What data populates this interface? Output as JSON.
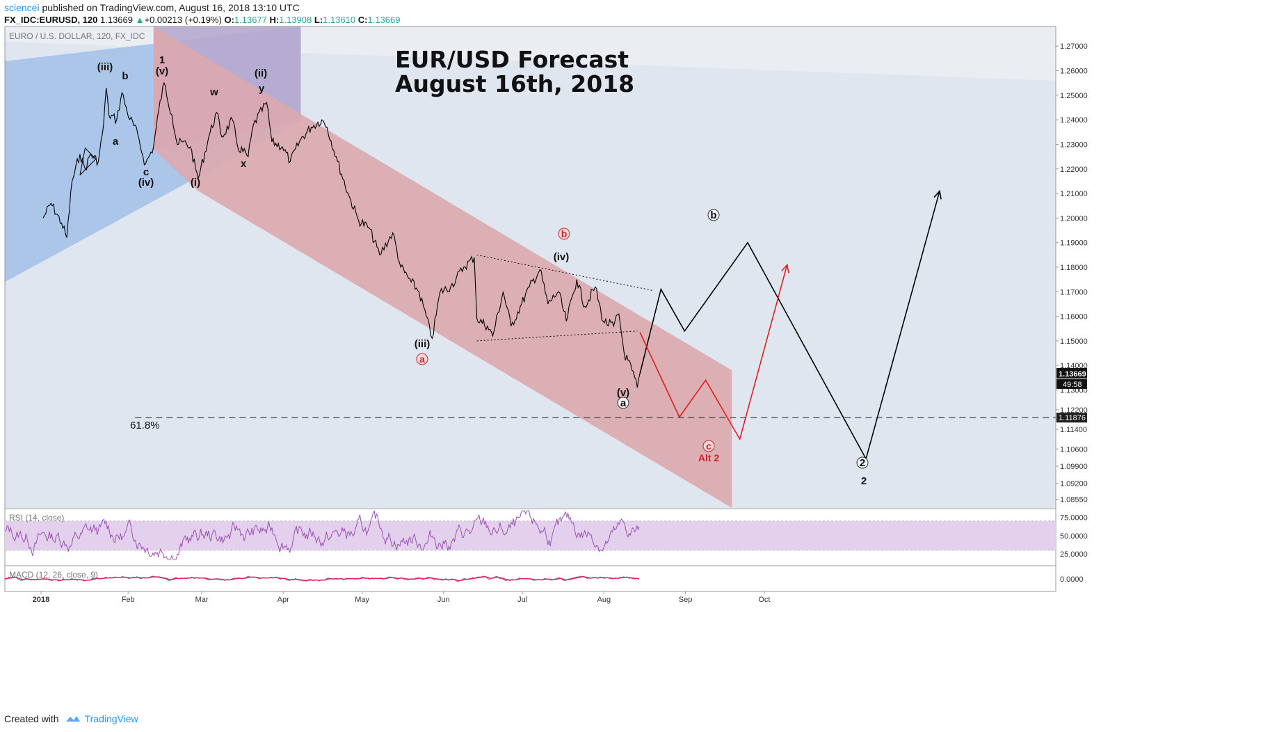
{
  "header": {
    "user": "sciencei",
    "published": " published on TradingView.com, August 16, 2018 13:10 UTC",
    "symbol": "FX_IDC:EURUSD, 120",
    "last": "1.13669",
    "change": "+0.00213 (+0.19%)",
    "o_label": "O:",
    "o_val": "1.13677",
    "h_label": "H:",
    "h_val": "1.13908",
    "l_label": "L:",
    "l_val": "1.13610",
    "c_label": "C:",
    "c_val": "1.13669"
  },
  "footer": {
    "created_with": "Created with",
    "brand": "TradingView"
  },
  "chart_data": {
    "type": "line",
    "instrument_label": "EURO / U.S. DOLLAR, 120, FX_IDC",
    "title": [
      "EUR/USD Forecast",
      "August 16th, 2018"
    ],
    "x_ticks": [
      "2018",
      "Feb",
      "Mar",
      "Apr",
      "May",
      "Jun",
      "Jul",
      "Aug",
      "Sep",
      "Oct"
    ],
    "y_ticks": [
      "1.27000",
      "1.26000",
      "1.25000",
      "1.24000",
      "1.23000",
      "1.22000",
      "1.21000",
      "1.20000",
      "1.19000",
      "1.18000",
      "1.17000",
      "1.16000",
      "1.15000",
      "1.14000",
      "1.13000",
      "1.12200",
      "1.11400",
      "1.10600",
      "1.09900",
      "1.09200",
      "1.08550"
    ],
    "ylim": [
      1.082,
      1.278
    ],
    "last_price": "1.13669",
    "countdown": "49:58",
    "fib_level": {
      "label": "61.8%",
      "value": 1.11876,
      "value_label": "1.11876"
    },
    "price_path": [
      [
        "2018-01-01",
        1.2
      ],
      [
        "2018-01-04",
        1.206
      ],
      [
        "2018-01-08",
        1.198
      ],
      [
        "2018-01-10",
        1.192
      ],
      [
        "2018-01-12",
        1.215
      ],
      [
        "2018-01-15",
        1.226
      ],
      [
        "2018-01-17",
        1.22
      ],
      [
        "2018-01-19",
        1.226
      ],
      [
        "2018-01-22",
        1.223
      ],
      [
        "2018-01-24",
        1.238
      ],
      [
        "2018-01-25",
        1.253
      ],
      [
        "2018-01-26",
        1.242
      ],
      [
        "2018-01-29",
        1.24
      ],
      [
        "2018-01-31",
        1.251
      ],
      [
        "2018-02-02",
        1.243
      ],
      [
        "2018-02-06",
        1.234
      ],
      [
        "2018-02-08",
        1.225
      ],
      [
        "2018-02-09",
        1.222
      ],
      [
        "2018-02-12",
        1.229
      ],
      [
        "2018-02-14",
        1.244
      ],
      [
        "2018-02-16",
        1.255
      ],
      [
        "2018-02-19",
        1.242
      ],
      [
        "2018-02-21",
        1.23
      ],
      [
        "2018-02-23",
        1.231
      ],
      [
        "2018-02-26",
        1.229
      ],
      [
        "2018-02-28",
        1.22
      ],
      [
        "2018-03-01",
        1.216
      ],
      [
        "2018-03-05",
        1.233
      ],
      [
        "2018-03-08",
        1.243
      ],
      [
        "2018-03-10",
        1.233
      ],
      [
        "2018-03-14",
        1.24
      ],
      [
        "2018-03-16",
        1.229
      ],
      [
        "2018-03-20",
        1.225
      ],
      [
        "2018-03-22",
        1.238
      ],
      [
        "2018-03-27",
        1.247
      ],
      [
        "2018-03-29",
        1.231
      ],
      [
        "2018-04-02",
        1.229
      ],
      [
        "2018-04-05",
        1.223
      ],
      [
        "2018-04-09",
        1.232
      ],
      [
        "2018-04-13",
        1.237
      ],
      [
        "2018-04-17",
        1.24
      ],
      [
        "2018-04-19",
        1.237
      ],
      [
        "2018-04-23",
        1.223
      ],
      [
        "2018-04-27",
        1.21
      ],
      [
        "2018-05-01",
        1.199
      ],
      [
        "2018-05-05",
        1.196
      ],
      [
        "2018-05-09",
        1.185
      ],
      [
        "2018-05-14",
        1.194
      ],
      [
        "2018-05-17",
        1.18
      ],
      [
        "2018-05-21",
        1.174
      ],
      [
        "2018-05-24",
        1.17
      ],
      [
        "2018-05-29",
        1.151
      ],
      [
        "2018-06-01",
        1.17
      ],
      [
        "2018-06-05",
        1.172
      ],
      [
        "2018-06-10",
        1.18
      ],
      [
        "2018-06-14",
        1.184
      ],
      [
        "2018-06-15",
        1.159
      ],
      [
        "2018-06-19",
        1.156
      ],
      [
        "2018-06-21",
        1.152
      ],
      [
        "2018-06-25",
        1.17
      ],
      [
        "2018-06-28",
        1.156
      ],
      [
        "2018-07-02",
        1.165
      ],
      [
        "2018-07-05",
        1.172
      ],
      [
        "2018-07-09",
        1.179
      ],
      [
        "2018-07-12",
        1.165
      ],
      [
        "2018-07-16",
        1.17
      ],
      [
        "2018-07-19",
        1.158
      ],
      [
        "2018-07-23",
        1.175
      ],
      [
        "2018-07-26",
        1.164
      ],
      [
        "2018-07-30",
        1.172
      ],
      [
        "2018-08-02",
        1.158
      ],
      [
        "2018-08-06",
        1.156
      ],
      [
        "2018-08-08",
        1.161
      ],
      [
        "2018-08-10",
        1.145
      ],
      [
        "2018-08-13",
        1.138
      ],
      [
        "2018-08-15",
        1.131
      ],
      [
        "2018-08-16",
        1.1367
      ]
    ],
    "projections": {
      "primary": [
        [
          "2018-08-16",
          1.1367
        ],
        [
          "2018-08-24",
          1.171
        ],
        [
          "2018-09-02",
          1.154
        ],
        [
          "2018-09-26",
          1.19
        ],
        [
          "2018-11-10",
          1.102
        ],
        [
          "2018-12-08",
          1.211
        ]
      ],
      "alt2": [
        [
          "2018-08-16",
          1.1535
        ],
        [
          "2018-08-31",
          1.119
        ],
        [
          "2018-09-10",
          1.134
        ],
        [
          "2018-09-23",
          1.11
        ],
        [
          "2018-10-11",
          1.181
        ]
      ]
    },
    "wave_labels": [
      "(iii)",
      "b",
      "1",
      "(v)",
      "w",
      "(ii)",
      "y",
      "a",
      "c",
      "(iv)",
      "(i)",
      "x",
      "(iii)",
      "a",
      "b",
      "(iv)",
      "(v)",
      "a",
      "b",
      "c",
      "2"
    ],
    "alt_label": "Alt 2",
    "rsi": {
      "label": "RSI (14, close)",
      "ticks": [
        "75.0000",
        "50.0000",
        "25.0000"
      ],
      "band": [
        30,
        70
      ]
    },
    "macd": {
      "label": "MACD (12, 26, close, 9)",
      "ticks": [
        "0.0000"
      ]
    },
    "colors": {
      "blue_channel": "#a9c4e8",
      "red_channel": "#dba8ae",
      "rsi_line": "#9c4fb3",
      "rsi_band": "#e3d0ec",
      "macd_signal": "#e91e63",
      "projection_alt": "#e01e1e"
    }
  }
}
